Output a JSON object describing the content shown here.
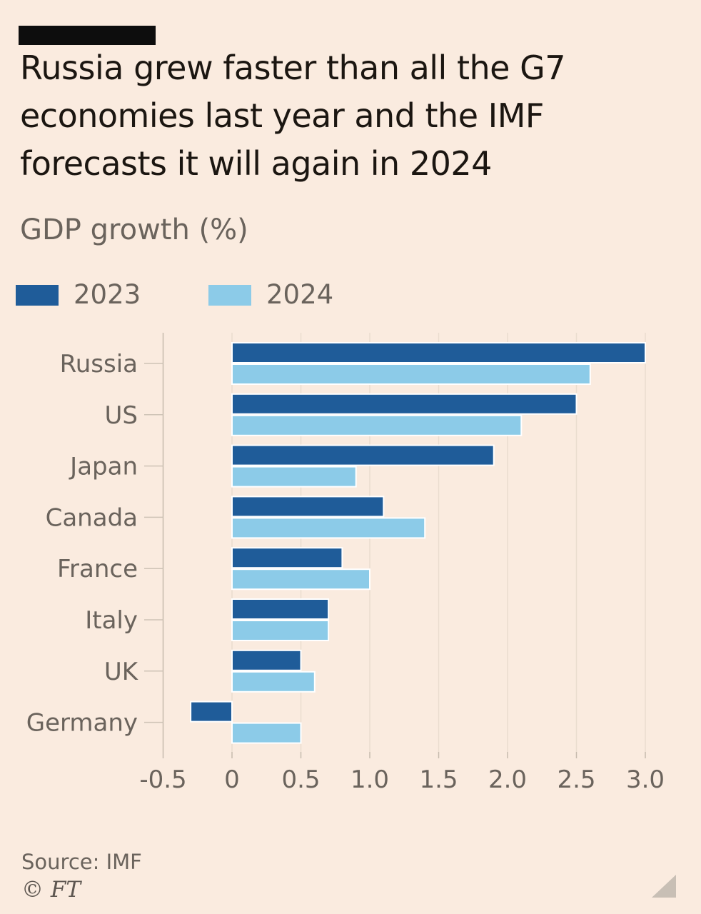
{
  "page": {
    "background": "#FAEBDF"
  },
  "header": {
    "title_lines": [
      "Russia grew faster than all the G7",
      "economies last year and the IMF",
      "forecasts it will again in 2024"
    ],
    "subtitle": "GDP growth (%)"
  },
  "legend": {
    "items": [
      {
        "label": "2023",
        "color": "#1F5C99"
      },
      {
        "label": "2024",
        "color": "#8CCBE8"
      }
    ]
  },
  "chart_data": {
    "type": "bar",
    "orientation": "horizontal",
    "title": "GDP growth (%)",
    "xlabel": "",
    "ylabel": "",
    "categories": [
      "Russia",
      "US",
      "Japan",
      "Canada",
      "France",
      "Italy",
      "UK",
      "Germany"
    ],
    "series": [
      {
        "name": "2023",
        "color": "#1F5C99",
        "values": [
          3.0,
          2.5,
          1.9,
          1.1,
          0.8,
          0.7,
          0.5,
          -0.3
        ]
      },
      {
        "name": "2024",
        "color": "#8CCBE8",
        "values": [
          2.6,
          2.1,
          0.9,
          1.4,
          1.0,
          0.7,
          0.6,
          0.5
        ]
      }
    ],
    "xlim": [
      -0.5,
      3.0
    ],
    "x_ticks": [
      -0.5,
      0,
      0.5,
      1.0,
      1.5,
      2.0,
      2.5,
      3.0
    ],
    "x_tick_labels": [
      "-0.5",
      "0",
      "0.5",
      "1.0",
      "1.5",
      "2.0",
      "2.5",
      "3.0"
    ],
    "grid": true,
    "legend_position": "top",
    "colors": {
      "grid_line": "#EADDCF",
      "axis_line": "#C6BBAE",
      "category_tick": "#CEC3B6",
      "label_text": "#6A635C",
      "bar_outline": "#FFFFFF"
    }
  },
  "footer": {
    "source": "Source: IMF",
    "copyright": "© FT",
    "handle_color": "#C8BFB5"
  }
}
